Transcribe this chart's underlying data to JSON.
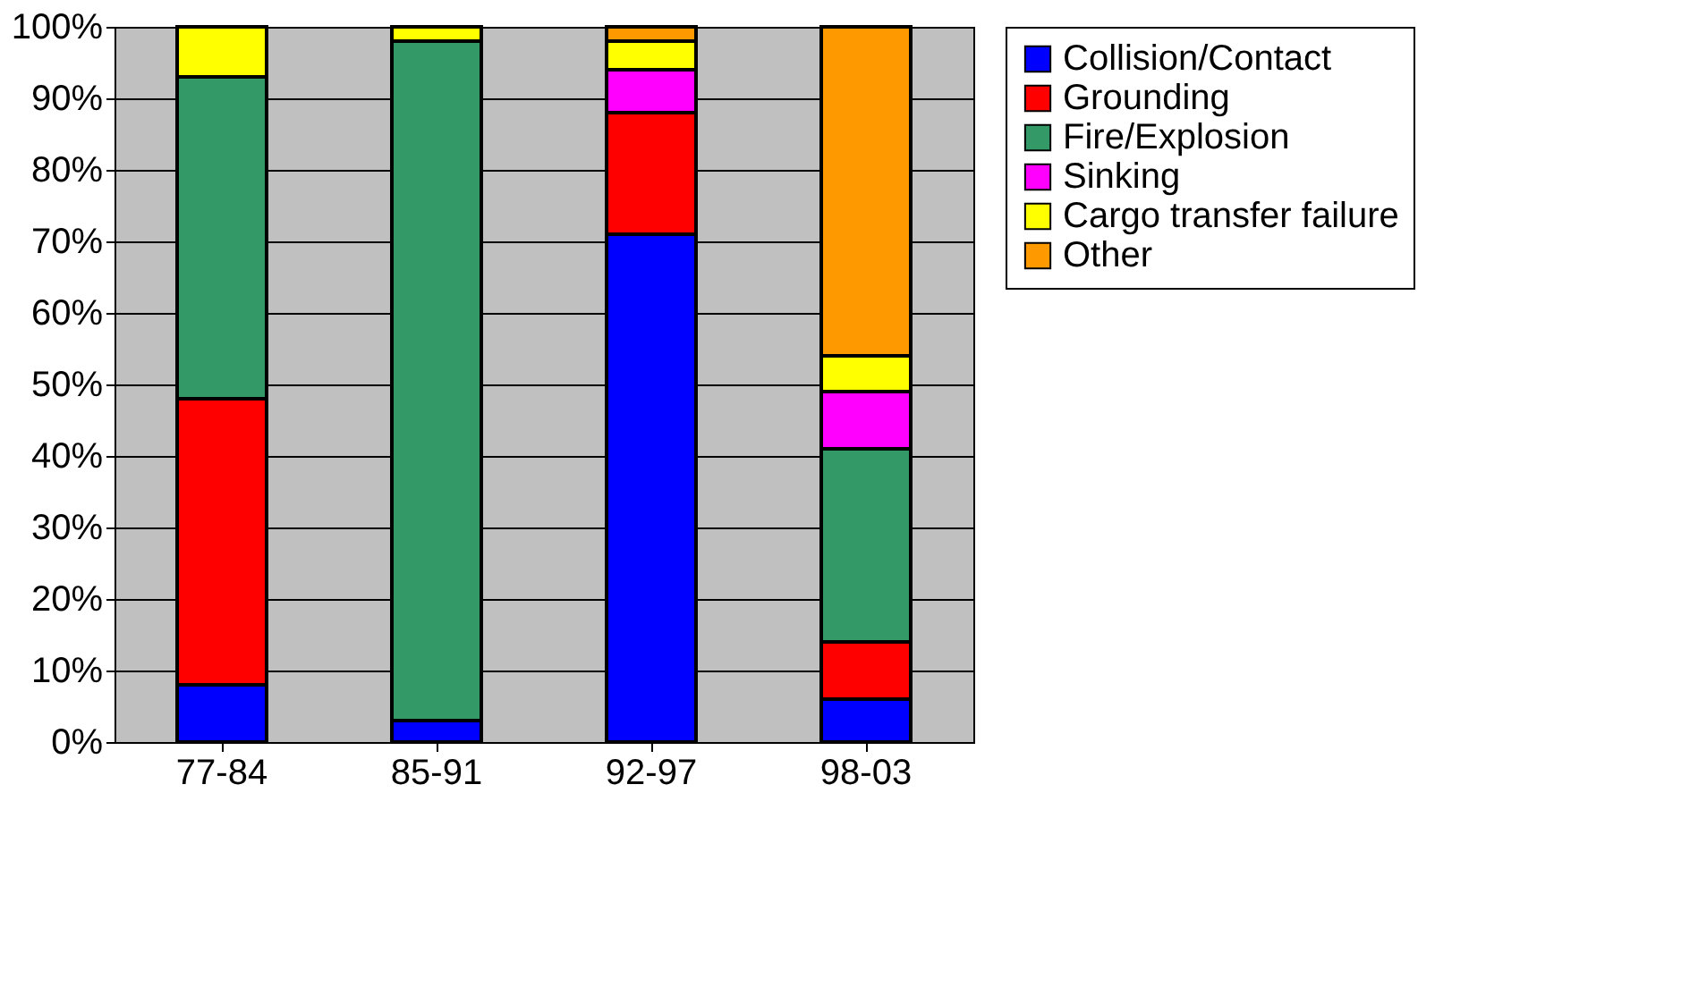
{
  "chart_data": {
    "type": "bar",
    "stacked": true,
    "categories": [
      "77-84",
      "85-91",
      "92-97",
      "98-03"
    ],
    "series": [
      {
        "name": "Collision/Contact",
        "color": "#0000ff",
        "values": [
          8,
          3,
          71,
          6
        ]
      },
      {
        "name": "Grounding",
        "color": "#ff0000",
        "values": [
          40,
          null,
          17,
          8
        ]
      },
      {
        "name": "Fire/Explosion",
        "color": "#339966",
        "values": [
          45,
          95,
          null,
          27
        ]
      },
      {
        "name": "Sinking",
        "color": "#ff00ff",
        "values": [
          null,
          null,
          6,
          8
        ]
      },
      {
        "name": "Cargo transfer failure",
        "color": "#ffff00",
        "values": [
          7,
          2,
          4,
          5
        ]
      },
      {
        "name": "Other",
        "color": "#ff9900",
        "values": [
          null,
          null,
          2,
          46
        ]
      }
    ],
    "ylim": [
      0,
      100
    ],
    "yticks": [
      {
        "value": 0,
        "label": "0%"
      },
      {
        "value": 10,
        "label": "10%"
      },
      {
        "value": 20,
        "label": "20%"
      },
      {
        "value": 30,
        "label": "30%"
      },
      {
        "value": 40,
        "label": "40%"
      },
      {
        "value": 50,
        "label": "50%"
      },
      {
        "value": 60,
        "label": "60%"
      },
      {
        "value": 70,
        "label": "70%"
      },
      {
        "value": 80,
        "label": "80%"
      },
      {
        "value": 90,
        "label": "90%"
      },
      {
        "value": 100,
        "label": "100%"
      }
    ],
    "grid": "y",
    "legend": "right"
  }
}
